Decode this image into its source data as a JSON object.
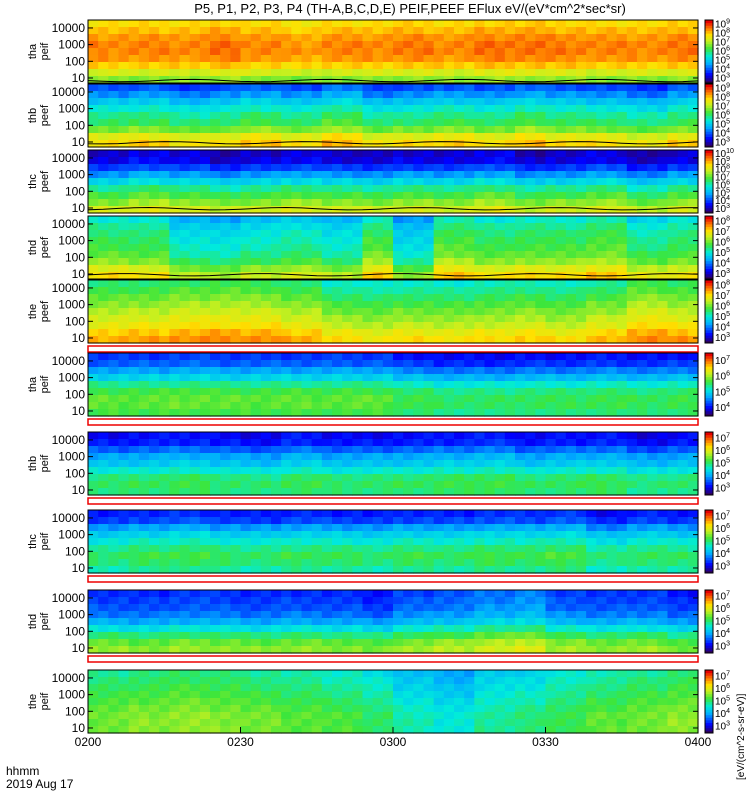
{
  "chart_data": {
    "type": "heatmap",
    "title": "P5, P1, P2, P3, P4 (TH-A,B,C,D,E) PEIF,PEEF EFlux eV/(eV*cm^2*sec*sr)",
    "time_label": "hhmm",
    "date_label": "2019 Aug 17",
    "x_ticks": [
      "0200",
      "0230",
      "0300",
      "0330",
      "0400"
    ],
    "xlim": [
      "02:00",
      "04:00"
    ],
    "ylim": [
      5,
      30000
    ],
    "y_scale": "log",
    "y_ticks": [
      "10",
      "100",
      "1000",
      "10000"
    ],
    "colorbar_unit": "[eV/(cm^2-s-sr-eV)]",
    "panels": [
      {
        "label": "tha peif",
        "probe": "tha",
        "species": "ion",
        "cbar_ticks": [
          "10^3",
          "10^4",
          "10^5",
          "10^6",
          "10^7",
          "10^8",
          "10^9"
        ],
        "level_profile": [
          0.62,
          0.7,
          0.8,
          0.86,
          0.88,
          0.88,
          0.86,
          0.82,
          0.78
        ],
        "time_modulation": [
          0,
          0,
          0,
          0.02,
          0,
          -0.02,
          0,
          0,
          0.01,
          0,
          0.02,
          0.02,
          0.01,
          0,
          0,
          0.01
        ],
        "overlay": "potential line near bottom"
      },
      {
        "label": "thb peef",
        "probe": "thb",
        "species": "electron",
        "cbar_ticks": [
          "10^3",
          "10^4",
          "10^5",
          "10^6",
          "10^7",
          "10^8",
          "10^9"
        ],
        "level_profile": [
          0.78,
          0.72,
          0.6,
          0.52,
          0.48,
          0.42,
          0.35,
          0.27,
          0.2
        ],
        "time_modulation": [
          0,
          0.02,
          -0.02,
          0,
          0.03,
          0,
          0.05,
          -0.02,
          0,
          0.02,
          0,
          0.04,
          0.01,
          0,
          -0.03,
          0.02
        ],
        "overlay": "potential line"
      },
      {
        "label": "thc peef",
        "probe": "thc",
        "species": "electron",
        "cbar_ticks": [
          "10^3",
          "10^4",
          "10^5",
          "10^6",
          "10^7",
          "10^8",
          "10^9",
          "10^10"
        ],
        "level_profile": [
          0.7,
          0.62,
          0.55,
          0.48,
          0.38,
          0.28,
          0.18,
          0.1,
          0.08
        ],
        "time_modulation": [
          0,
          0.03,
          0.01,
          -0.02,
          0,
          0.02,
          0,
          -0.01,
          0.01,
          0,
          0.03,
          -0.02,
          0,
          0.02,
          -0.03,
          0.01
        ],
        "overlay": "potential line"
      },
      {
        "label": "thd peef",
        "probe": "thd",
        "species": "electron",
        "cbar_ticks": [
          "10^3",
          "10^4",
          "10^5",
          "10^6",
          "10^7",
          "10^8"
        ],
        "level_profile": [
          0.75,
          0.68,
          0.6,
          0.55,
          0.52,
          0.5,
          0.48,
          0.45,
          0.4
        ],
        "time_modulation": [
          0.03,
          0.02,
          -0.08,
          -0.1,
          -0.06,
          -0.04,
          -0.08,
          0.05,
          -0.12,
          0.06,
          0.02,
          0.04,
          0.03,
          0.06,
          -0.02,
          0.01
        ],
        "overlay": "potential line"
      },
      {
        "label": "the peef",
        "probe": "the",
        "species": "electron",
        "cbar_ticks": [
          "10^3",
          "10^4",
          "10^5",
          "10^6",
          "10^7",
          "10^8"
        ],
        "level_profile": [
          0.82,
          0.78,
          0.72,
          0.68,
          0.64,
          0.6,
          0.56,
          0.52,
          0.48
        ],
        "time_modulation": [
          0.02,
          0.03,
          0.05,
          0.06,
          0.05,
          0.02,
          -0.04,
          -0.06,
          -0.04,
          -0.05,
          -0.03,
          -0.02,
          -0.04,
          0,
          0.06,
          0.04
        ],
        "overlay": "none"
      },
      {
        "label": "tha peif",
        "probe": "tha",
        "species": "ion",
        "cbar_ticks": [
          "10^4",
          "10^5",
          "10^6",
          "10^7"
        ],
        "level_profile": [
          0.55,
          0.58,
          0.58,
          0.55,
          0.48,
          0.38,
          0.3,
          0.22,
          0.18
        ],
        "time_modulation": [
          0,
          0,
          0.01,
          0,
          0,
          0,
          0,
          0,
          -0.04,
          -0.06,
          -0.06,
          -0.05,
          -0.05,
          -0.04,
          -0.05,
          -0.04
        ],
        "overlay": "none"
      },
      {
        "label": "thb peif",
        "probe": "thb",
        "species": "ion",
        "cbar_ticks": [
          "10^3",
          "10^4",
          "10^5",
          "10^6",
          "10^7"
        ],
        "level_profile": [
          0.5,
          0.52,
          0.5,
          0.42,
          0.35,
          0.3,
          0.22,
          0.14,
          0.12
        ],
        "time_modulation": [
          0,
          0.01,
          0.02,
          0,
          -0.01,
          0.02,
          0,
          0,
          0.01,
          0.02,
          0.03,
          0,
          0.01,
          0.02,
          -0.02,
          0
        ],
        "overlay": "none"
      },
      {
        "label": "thc peif",
        "probe": "thc",
        "species": "ion",
        "cbar_ticks": [
          "10^3",
          "10^4",
          "10^5",
          "10^6",
          "10^7"
        ],
        "level_profile": [
          0.46,
          0.5,
          0.52,
          0.48,
          0.42,
          0.36,
          0.28,
          0.18,
          0.14
        ],
        "time_modulation": [
          0,
          0.02,
          0.03,
          0.01,
          0,
          0.02,
          0.01,
          0,
          0.02,
          0.01,
          0.03,
          0.02,
          0.04,
          -0.02,
          0.01,
          0
        ],
        "overlay": "none"
      },
      {
        "label": "thd peif",
        "probe": "thd",
        "species": "ion",
        "cbar_ticks": [
          "10^3",
          "10^4",
          "10^5",
          "10^6",
          "10^7"
        ],
        "level_profile": [
          0.62,
          0.58,
          0.5,
          0.4,
          0.3,
          0.24,
          0.2,
          0.18,
          0.16
        ],
        "time_modulation": [
          0.01,
          0,
          0.02,
          0.01,
          0,
          0.01,
          0,
          -0.02,
          0.03,
          0.05,
          0.08,
          0.1,
          0.03,
          0.01,
          0.02,
          -0.02
        ],
        "overlay": "none"
      },
      {
        "label": "the peif",
        "probe": "the",
        "species": "ion",
        "cbar_ticks": [
          "10^3",
          "10^4",
          "10^5",
          "10^6",
          "10^7"
        ],
        "level_profile": [
          0.58,
          0.58,
          0.58,
          0.56,
          0.54,
          0.52,
          0.5,
          0.48,
          0.46
        ],
        "time_modulation": [
          0.02,
          0.04,
          0.05,
          0.04,
          0.02,
          0,
          -0.02,
          -0.06,
          -0.12,
          -0.16,
          -0.1,
          -0.08,
          -0.04,
          0,
          0.02,
          0.05
        ],
        "overlay": "none"
      }
    ],
    "colormap": "rainbow (blue→cyan→green→yellow→red)"
  }
}
